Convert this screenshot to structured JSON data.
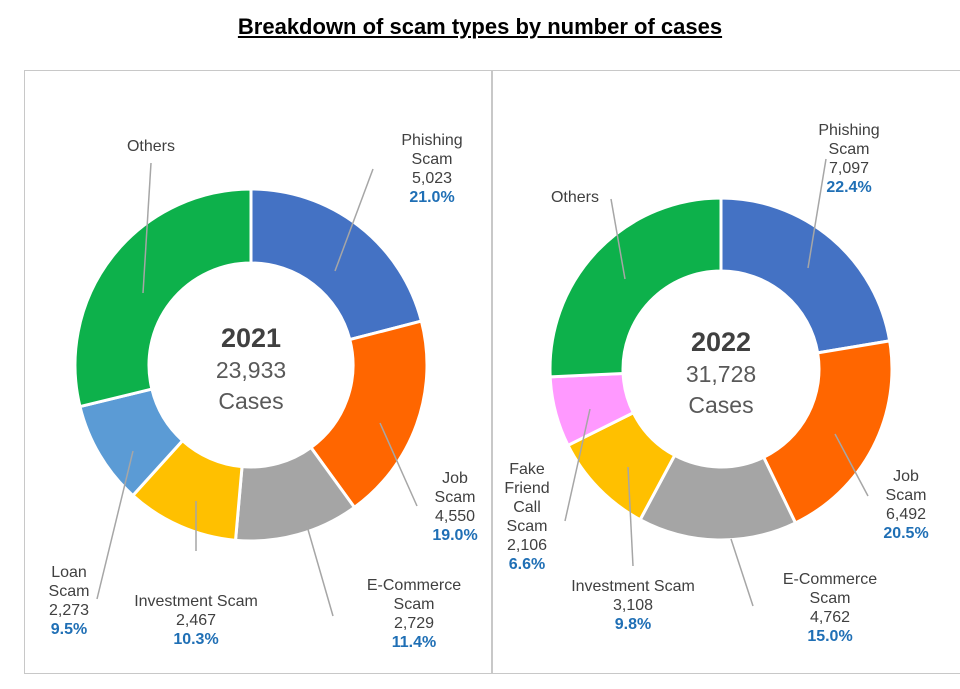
{
  "title": "Breakdown of scam types by number of cases",
  "chart_data": [
    {
      "type": "pie",
      "center_year": "2021",
      "center_total": "23,933",
      "center_unit": "Cases",
      "slices": [
        {
          "label": "Phishing Scam",
          "value": 5023,
          "value_text": "5,023",
          "percent": "21.0%",
          "color": "#4472c4"
        },
        {
          "label": "Job Scam",
          "value": 4550,
          "value_text": "4,550",
          "percent": "19.0%",
          "color": "#ff6600"
        },
        {
          "label": "E-Commerce Scam",
          "value": 2729,
          "value_text": "2,729",
          "percent": "11.4%",
          "color": "#a5a5a5"
        },
        {
          "label": "Investment Scam",
          "value": 2467,
          "value_text": "2,467",
          "percent": "10.3%",
          "color": "#ffc000"
        },
        {
          "label": "Loan Scam",
          "value": 2273,
          "value_text": "2,273",
          "percent": "9.5%",
          "color": "#5b9bd5"
        },
        {
          "label": "Others",
          "value": 6891,
          "value_text": "",
          "percent": "",
          "color": "#0db14b"
        }
      ]
    },
    {
      "type": "pie",
      "center_year": "2022",
      "center_total": "31,728",
      "center_unit": "Cases",
      "slices": [
        {
          "label": "Phishing Scam",
          "value": 7097,
          "value_text": "7,097",
          "percent": "22.4%",
          "color": "#4472c4"
        },
        {
          "label": "Job Scam",
          "value": 6492,
          "value_text": "6,492",
          "percent": "20.5%",
          "color": "#ff6600"
        },
        {
          "label": "E-Commerce Scam",
          "value": 4762,
          "value_text": "4,762",
          "percent": "15.0%",
          "color": "#a5a5a5"
        },
        {
          "label": "Investment Scam",
          "value": 3108,
          "value_text": "3,108",
          "percent": "9.8%",
          "color": "#ffc000"
        },
        {
          "label": "Fake Friend Call Scam",
          "value": 2106,
          "value_text": "2,106",
          "percent": "6.6%",
          "color": "#ff99ff"
        },
        {
          "label": "Others",
          "value": 8163,
          "value_text": "",
          "percent": "",
          "color": "#0db14b"
        }
      ]
    }
  ]
}
